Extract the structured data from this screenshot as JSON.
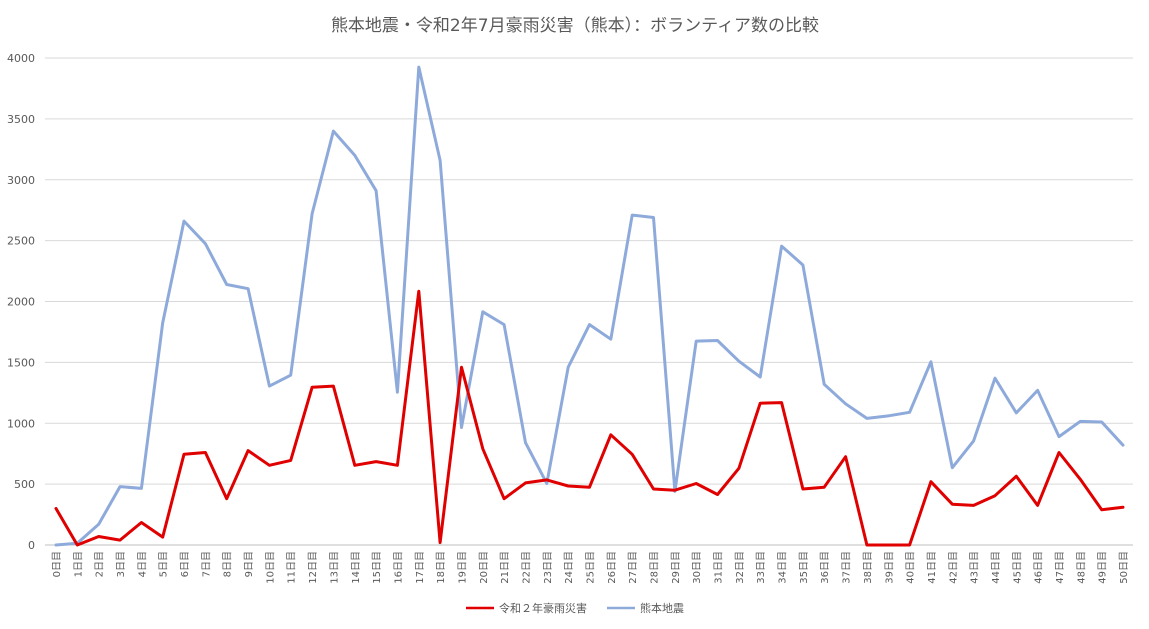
{
  "chart_data": {
    "type": "line",
    "title": "熊本地震・令和2年7月豪雨災害（熊本）：ボランティア数の比較",
    "categories": [
      "0日目",
      "1日目",
      "2日目",
      "3日目",
      "4日目",
      "5日目",
      "6日目",
      "7日目",
      "8日目",
      "9日目",
      "10日目",
      "11日目",
      "12日目",
      "13日目",
      "14日目",
      "15日目",
      "16日目",
      "17日目",
      "18日目",
      "19日目",
      "20日目",
      "21日目",
      "22日目",
      "23日目",
      "24日目",
      "25日目",
      "26日目",
      "27日目",
      "28日目",
      "29日目",
      "30日目",
      "31日目",
      "32日目",
      "33日目",
      "34日目",
      "35日目",
      "36日目",
      "37日目",
      "38日目",
      "39日目",
      "40日目",
      "41日目",
      "42日目",
      "43日目",
      "44日目",
      "45日目",
      "46日目",
      "47日目",
      "48日目",
      "49日目",
      "50日目"
    ],
    "ylim": [
      0,
      4000
    ],
    "yticks": [
      0,
      500,
      1000,
      1500,
      2000,
      2500,
      3000,
      3500,
      4000
    ],
    "grid": true,
    "legend_position": "bottom",
    "series": [
      {
        "name": "令和２年豪雨災害",
        "color": "#e00000",
        "values": [
          300,
          0,
          70,
          40,
          185,
          65,
          745,
          760,
          380,
          775,
          655,
          695,
          1295,
          1305,
          655,
          685,
          655,
          2085,
          20,
          1460,
          790,
          380,
          510,
          535,
          485,
          475,
          905,
          745,
          460,
          450,
          505,
          415,
          630,
          1165,
          1170,
          460,
          475,
          725,
          0,
          0,
          0,
          520,
          335,
          325,
          405,
          565,
          325,
          760,
          540,
          290,
          310
        ]
      },
      {
        "name": "熊本地震",
        "color": "#8eaadb",
        "values": [
          0,
          15,
          170,
          480,
          465,
          1825,
          2660,
          2475,
          2140,
          2105,
          1305,
          1395,
          2720,
          3400,
          3200,
          2910,
          1255,
          3925,
          3160,
          965,
          1915,
          1810,
          840,
          505,
          1460,
          1810,
          1690,
          2710,
          2690,
          440,
          1675,
          1680,
          1510,
          1380,
          2455,
          2300,
          1320,
          1160,
          1040,
          1060,
          1090,
          1505,
          635,
          855,
          1370,
          1085,
          1270,
          890,
          1015,
          1010,
          820
        ]
      }
    ]
  }
}
